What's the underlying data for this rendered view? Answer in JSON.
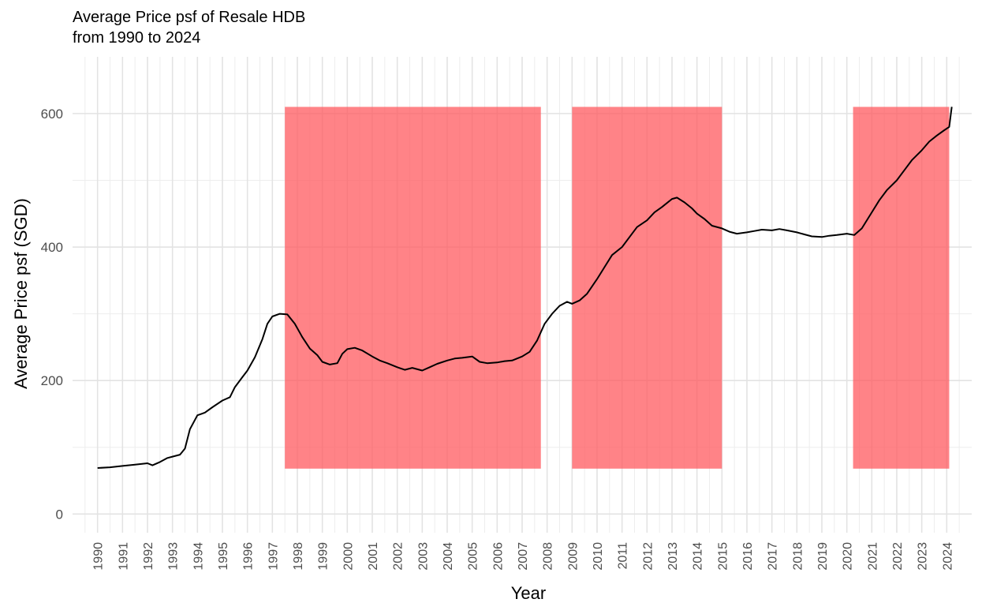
{
  "chart_data": {
    "type": "line",
    "title": "Average Price psf of Resale HDB",
    "subtitle": "from 1990 to 2024",
    "xlabel": "Year",
    "ylabel": "Average Price psf (SGD)",
    "xlim": [
      1989.0,
      2025.0
    ],
    "ylim": [
      -28,
      685
    ],
    "y_ticks": [
      0,
      200,
      400,
      600
    ],
    "x_ticks": [
      1990,
      1991,
      1992,
      1993,
      1994,
      1995,
      1996,
      1997,
      1998,
      1999,
      2000,
      2001,
      2002,
      2003,
      2004,
      2005,
      2006,
      2007,
      2008,
      2009,
      2010,
      2011,
      2012,
      2013,
      2014,
      2015,
      2016,
      2017,
      2018,
      2019,
      2020,
      2021,
      2022,
      2023,
      2024
    ],
    "grid": true,
    "line_color": "#000000",
    "highlight_color": "#ff5a5f",
    "highlight_periods": [
      {
        "start": 1997.5,
        "end": 2007.75,
        "ymin": 68,
        "ymax": 610
      },
      {
        "start": 2009.0,
        "end": 2015.0,
        "ymin": 68,
        "ymax": 610
      },
      {
        "start": 2020.25,
        "end": 2024.1,
        "ymin": 68,
        "ymax": 610
      }
    ],
    "series": [
      {
        "values": [
          [
            1990.0,
            69
          ],
          [
            1990.5,
            70
          ],
          [
            1991.0,
            72
          ],
          [
            1991.5,
            74
          ],
          [
            1992.0,
            76
          ],
          [
            1992.2,
            73
          ],
          [
            1992.5,
            78
          ],
          [
            1992.8,
            84
          ],
          [
            1993.0,
            86
          ],
          [
            1993.3,
            89
          ],
          [
            1993.5,
            98
          ],
          [
            1993.7,
            127
          ],
          [
            1994.0,
            148
          ],
          [
            1994.3,
            152
          ],
          [
            1994.6,
            160
          ],
          [
            1995.0,
            170
          ],
          [
            1995.3,
            175
          ],
          [
            1995.5,
            190
          ],
          [
            1995.8,
            205
          ],
          [
            1996.0,
            215
          ],
          [
            1996.3,
            235
          ],
          [
            1996.6,
            262
          ],
          [
            1996.8,
            285
          ],
          [
            1997.0,
            296
          ],
          [
            1997.3,
            300
          ],
          [
            1997.6,
            299
          ],
          [
            1997.9,
            285
          ],
          [
            1998.2,
            265
          ],
          [
            1998.5,
            248
          ],
          [
            1998.8,
            238
          ],
          [
            1999.0,
            228
          ],
          [
            1999.3,
            224
          ],
          [
            1999.6,
            226
          ],
          [
            1999.8,
            240
          ],
          [
            2000.0,
            247
          ],
          [
            2000.3,
            249
          ],
          [
            2000.6,
            245
          ],
          [
            2001.0,
            236
          ],
          [
            2001.3,
            230
          ],
          [
            2001.6,
            226
          ],
          [
            2002.0,
            220
          ],
          [
            2002.3,
            216
          ],
          [
            2002.6,
            219
          ],
          [
            2003.0,
            215
          ],
          [
            2003.3,
            220
          ],
          [
            2003.6,
            225
          ],
          [
            2004.0,
            230
          ],
          [
            2004.3,
            233
          ],
          [
            2004.6,
            234
          ],
          [
            2005.0,
            236
          ],
          [
            2005.3,
            228
          ],
          [
            2005.6,
            226
          ],
          [
            2006.0,
            227
          ],
          [
            2006.3,
            229
          ],
          [
            2006.6,
            230
          ],
          [
            2007.0,
            236
          ],
          [
            2007.3,
            243
          ],
          [
            2007.6,
            260
          ],
          [
            2007.9,
            285
          ],
          [
            2008.2,
            300
          ],
          [
            2008.5,
            312
          ],
          [
            2008.8,
            318
          ],
          [
            2009.0,
            315
          ],
          [
            2009.3,
            320
          ],
          [
            2009.6,
            330
          ],
          [
            2010.0,
            352
          ],
          [
            2010.3,
            370
          ],
          [
            2010.6,
            388
          ],
          [
            2011.0,
            400
          ],
          [
            2011.3,
            415
          ],
          [
            2011.6,
            430
          ],
          [
            2012.0,
            440
          ],
          [
            2012.3,
            452
          ],
          [
            2012.6,
            460
          ],
          [
            2013.0,
            472
          ],
          [
            2013.2,
            474
          ],
          [
            2013.5,
            467
          ],
          [
            2013.8,
            458
          ],
          [
            2014.0,
            450
          ],
          [
            2014.3,
            442
          ],
          [
            2014.6,
            432
          ],
          [
            2015.0,
            428
          ],
          [
            2015.3,
            423
          ],
          [
            2015.6,
            420
          ],
          [
            2016.0,
            422
          ],
          [
            2016.3,
            424
          ],
          [
            2016.6,
            426
          ],
          [
            2017.0,
            425
          ],
          [
            2017.3,
            427
          ],
          [
            2017.6,
            425
          ],
          [
            2018.0,
            422
          ],
          [
            2018.3,
            419
          ],
          [
            2018.6,
            416
          ],
          [
            2019.0,
            415
          ],
          [
            2019.3,
            417
          ],
          [
            2019.6,
            418
          ],
          [
            2020.0,
            420
          ],
          [
            2020.3,
            418
          ],
          [
            2020.6,
            428
          ],
          [
            2021.0,
            452
          ],
          [
            2021.3,
            470
          ],
          [
            2021.6,
            485
          ],
          [
            2022.0,
            500
          ],
          [
            2022.3,
            515
          ],
          [
            2022.6,
            530
          ],
          [
            2023.0,
            545
          ],
          [
            2023.3,
            558
          ],
          [
            2023.6,
            567
          ],
          [
            2023.9,
            575
          ],
          [
            2024.1,
            580
          ],
          [
            2024.2,
            610
          ]
        ]
      }
    ]
  }
}
